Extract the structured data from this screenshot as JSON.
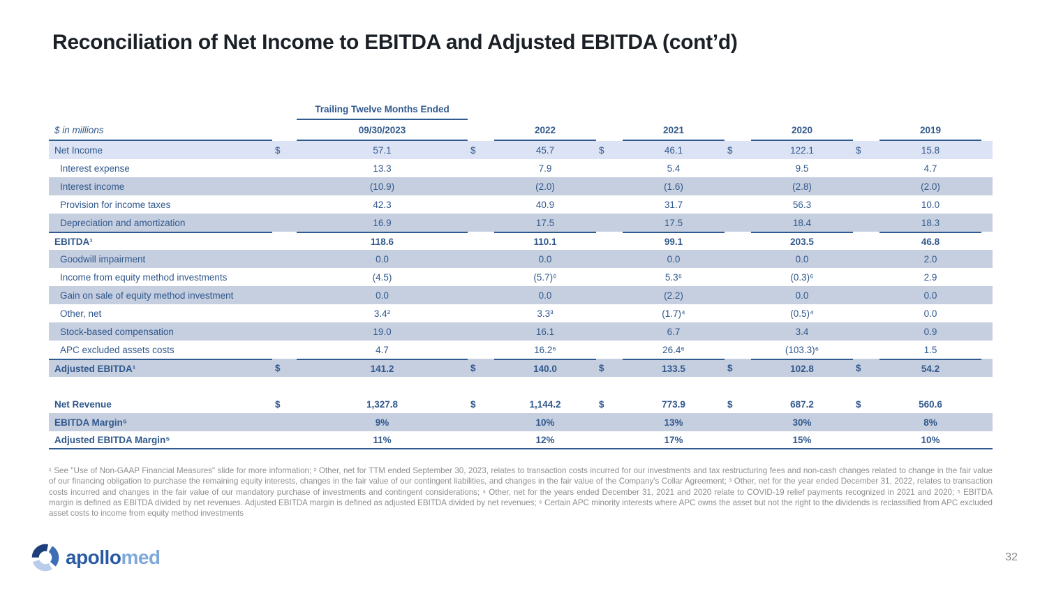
{
  "slide": {
    "title": "Reconciliation of Net Income to EBITDA and Adjusted EBITDA (cont’d)",
    "page_number": "32"
  },
  "table": {
    "group_header": "Trailing Twelve Months Ended",
    "units_label": "$ in millions",
    "years": [
      "09/30/2023",
      "2022",
      "2021",
      "2020",
      "2019"
    ],
    "rows": [
      {
        "label": "Net Income",
        "indent": false,
        "bold": false,
        "dollar": true,
        "shade": "blue",
        "values": [
          "57.1",
          "45.7",
          "46.1",
          "122.1",
          "15.8"
        ]
      },
      {
        "label": "Interest expense",
        "indent": true,
        "bold": false,
        "dollar": false,
        "shade": "none",
        "values": [
          "13.3",
          "7.9",
          "5.4",
          "9.5",
          "4.7"
        ]
      },
      {
        "label": "Interest income",
        "indent": true,
        "bold": false,
        "dollar": false,
        "shade": "gray",
        "values": [
          "(10.9)",
          "(2.0)",
          "(1.6)",
          "(2.8)",
          "(2.0)"
        ]
      },
      {
        "label": "Provision for income taxes",
        "indent": true,
        "bold": false,
        "dollar": false,
        "shade": "none",
        "values": [
          "42.3",
          "40.9",
          "31.7",
          "56.3",
          "10.0"
        ]
      },
      {
        "label": "Depreciation and amortization",
        "indent": true,
        "bold": false,
        "dollar": false,
        "shade": "gray",
        "values": [
          "16.9",
          "17.5",
          "17.5",
          "18.4",
          "18.3"
        ]
      },
      {
        "label": "EBITDA¹",
        "indent": false,
        "bold": true,
        "dollar": false,
        "shade": "none",
        "border_top": true,
        "values": [
          "118.6",
          "110.1",
          "99.1",
          "203.5",
          "46.8"
        ]
      },
      {
        "label": "Goodwill impairment",
        "indent": true,
        "bold": false,
        "dollar": false,
        "shade": "gray",
        "values": [
          "0.0",
          "0.0",
          "0.0",
          "0.0",
          "2.0"
        ]
      },
      {
        "label": "Income from equity method investments",
        "indent": true,
        "bold": false,
        "dollar": false,
        "shade": "none",
        "values": [
          "(4.5)",
          "(5.7)⁶",
          "5.3⁶",
          "(0.3)⁶",
          "2.9"
        ]
      },
      {
        "label": "Gain on sale of equity method investment",
        "indent": true,
        "bold": false,
        "dollar": false,
        "shade": "gray",
        "values": [
          "0.0",
          "0.0",
          "(2.2)",
          "0.0",
          "0.0"
        ]
      },
      {
        "label": "Other, net",
        "indent": true,
        "bold": false,
        "dollar": false,
        "shade": "none",
        "values": [
          "3.4²",
          "3.3³",
          "(1.7)⁴",
          "(0.5)⁴",
          "0.0"
        ]
      },
      {
        "label": "Stock-based compensation",
        "indent": true,
        "bold": false,
        "dollar": false,
        "shade": "gray",
        "values": [
          "19.0",
          "16.1",
          "6.7",
          "3.4",
          "0.9"
        ]
      },
      {
        "label": "APC excluded assets costs",
        "indent": true,
        "bold": false,
        "dollar": false,
        "shade": "none",
        "values": [
          "4.7",
          "16.2⁶",
          "26.4⁶",
          "(103.3)⁶",
          "1.5"
        ]
      },
      {
        "label": "Adjusted EBITDA¹",
        "indent": false,
        "bold": true,
        "dollar": true,
        "shade": "gray",
        "border_top": true,
        "values": [
          "141.2",
          "140.0",
          "133.5",
          "102.8",
          "54.2"
        ]
      },
      {
        "spacer": true
      },
      {
        "label": "Net Revenue",
        "indent": false,
        "bold": true,
        "dollar": true,
        "shade": "none",
        "values": [
          "1,327.8",
          "1,144.2",
          "773.9",
          "687.2",
          "560.6"
        ]
      },
      {
        "label": "EBITDA Margin⁵",
        "indent": false,
        "bold": true,
        "dollar": false,
        "shade": "gray",
        "values": [
          "9%",
          "10%",
          "13%",
          "30%",
          "8%"
        ]
      },
      {
        "label": "Adjusted EBITDA Margin⁵",
        "indent": false,
        "bold": true,
        "dollar": false,
        "shade": "none",
        "border_bottom": true,
        "values": [
          "11%",
          "12%",
          "17%",
          "15%",
          "10%"
        ]
      }
    ]
  },
  "footnotes": "¹ See \"Use of Non-GAAP Financial Measures\" slide for more information; ² Other, net for TTM ended September 30, 2023, relates to transaction costs incurred for our investments and tax restructuring fees and non-cash changes related to change in the fair value of our financing obligation to purchase the remaining equity interests, changes in the fair value of our contingent liabilities, and changes in the fair value of the Company's Collar Agreement; ³ Other, net for the year ended December 31, 2022, relates to transaction costs incurred and changes in the fair value of our mandatory purchase of investments and contingent considerations; ⁴ Other, net for the years ended December 31, 2021 and 2020 relate to COVID-19 relief payments recognized in 2021 and 2020; ⁵ EBITDA margin is defined as EBITDA divided by net revenues. Adjusted EBITDA margin is defined as adjusted EBITDA divided by net revenues; ⁶ Certain APC minority interests where APC owns the asset but not the right to the dividends is reclassified from APC excluded asset costs to income from equity method investments",
  "logo": {
    "part1": "apollo",
    "part2": "med"
  },
  "colors": {
    "accent_text_blue": "#30588c",
    "rule_line_blue": "#2f5a8e",
    "row_shade_light_blue": "#dce3f4",
    "row_shade_gray_blue": "#c6cfe0",
    "footnote_gray": "#8e8e8e",
    "logo_dark_blue": "#2a5aa4",
    "logo_light_blue": "#80a9db"
  }
}
